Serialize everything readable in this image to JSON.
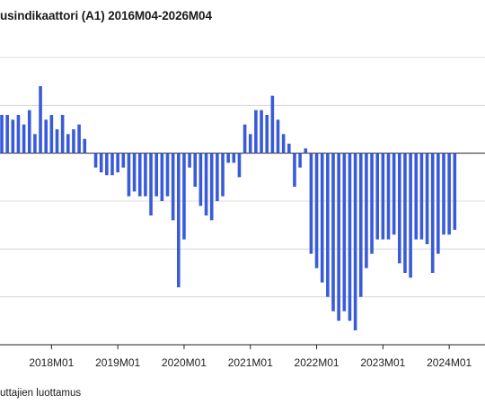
{
  "chart_data": {
    "type": "bar",
    "title": "usindikaattori (A1) 2016M04-2026M04",
    "legend": [
      "uttajien luottamus"
    ],
    "x_tick_labels": [
      "2018M01",
      "2019M01",
      "2020M01",
      "2021M01",
      "2022M01",
      "2023M01",
      "2024M01"
    ],
    "grid": true,
    "ylim": [
      -20,
      10
    ],
    "start_month": "2017M04",
    "color": "#3a5bd9",
    "values": [
      4,
      4,
      3.5,
      4,
      3,
      4.5,
      2,
      7,
      3.5,
      4,
      2.5,
      4,
      2,
      2.5,
      3,
      1.5,
      0,
      -1.5,
      -2,
      -2.3,
      -2.3,
      -2,
      -1.5,
      -4.5,
      -4,
      -4.5,
      -4.5,
      -6.5,
      -4.5,
      -5,
      -4.5,
      -7,
      -14,
      -9,
      -1.5,
      -3.5,
      -5.5,
      -6.5,
      -7,
      -5,
      -4.5,
      -1,
      -1,
      -2.5,
      3,
      2,
      4.5,
      4.5,
      4,
      6,
      3.5,
      2,
      1,
      -3.5,
      -1.5,
      0.5,
      -10.5,
      -12,
      -13.5,
      -15,
      -16.5,
      -17.5,
      -16.5,
      -17.5,
      -18.5,
      -15,
      -12,
      -10.5,
      -9,
      -9,
      -9,
      -8.5,
      -11.5,
      -12.5,
      -13,
      -9,
      -9,
      -9.5,
      -12.5,
      -10.5,
      -8.5,
      -8.5,
      -8
    ]
  }
}
